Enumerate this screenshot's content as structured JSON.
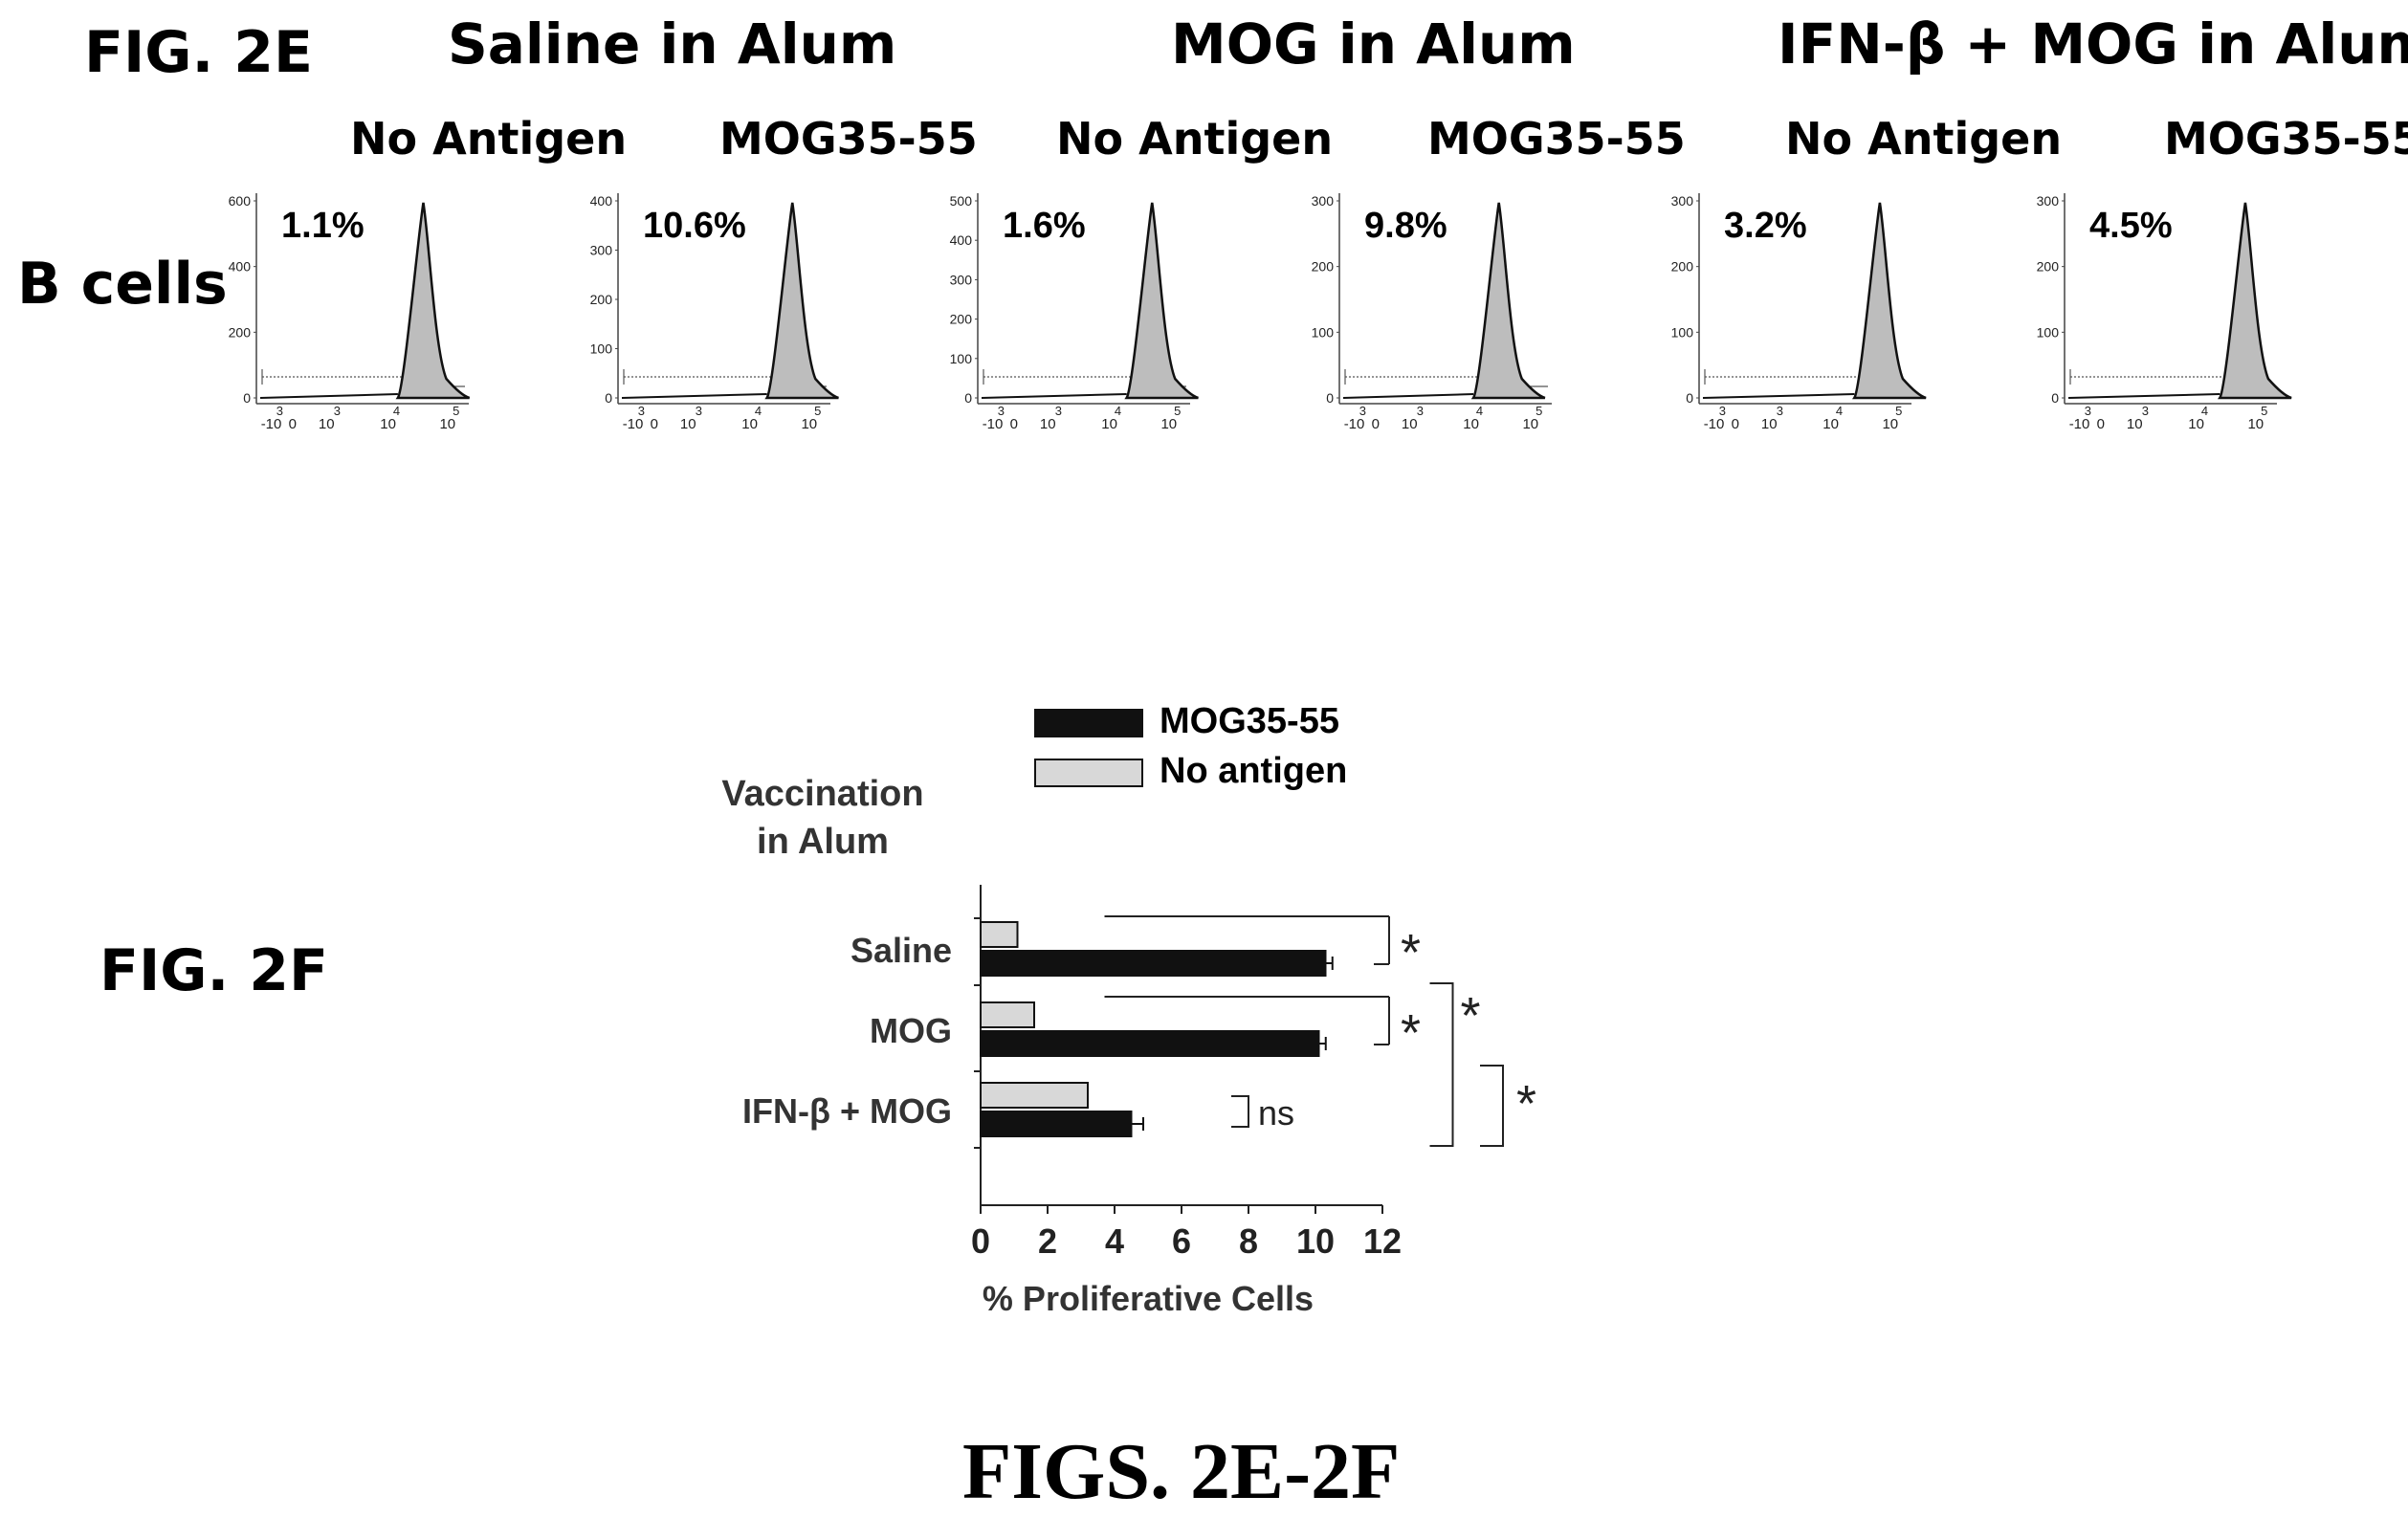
{
  "fig2e": {
    "label": "FIG. 2E",
    "row_label": "B cells",
    "groups": [
      {
        "title": "Saline in Alum"
      },
      {
        "title": "MOG in Alum"
      },
      {
        "title": "IFN-β + MOG in Alum"
      }
    ],
    "panels": [
      {
        "condition": "No Antigen",
        "percent": "1.1%",
        "y_ticks": [
          "600",
          "400",
          "200",
          "0"
        ],
        "x_ticks": [
          "-10",
          "0",
          "10",
          "10",
          "10"
        ],
        "x_exps": [
          "3",
          "3",
          "4",
          "5"
        ]
      },
      {
        "condition": "MOG35-55",
        "percent": "10.6%",
        "y_ticks": [
          "400",
          "300",
          "200",
          "100",
          "0"
        ],
        "x_ticks": [
          "-10",
          "0",
          "10",
          "10",
          "10"
        ],
        "x_exps": [
          "3",
          "3",
          "4",
          "5"
        ]
      },
      {
        "condition": "No Antigen",
        "percent": "1.6%",
        "y_ticks": [
          "500",
          "400",
          "300",
          "200",
          "100",
          "0"
        ],
        "x_ticks": [
          "-10",
          "0",
          "10",
          "10",
          "10"
        ],
        "x_exps": [
          "3",
          "3",
          "4",
          "5"
        ]
      },
      {
        "condition": "MOG35-55",
        "percent": "9.8%",
        "y_ticks": [
          "300",
          "200",
          "100",
          "0"
        ],
        "x_ticks": [
          "-10",
          "0",
          "10",
          "10",
          "10"
        ],
        "x_exps": [
          "3",
          "3",
          "4",
          "5"
        ]
      },
      {
        "condition": "No Antigen",
        "percent": "3.2%",
        "y_ticks": [
          "300",
          "200",
          "100",
          "0"
        ],
        "x_ticks": [
          "-10",
          "0",
          "10",
          "10",
          "10"
        ],
        "x_exps": [
          "3",
          "3",
          "4",
          "5"
        ]
      },
      {
        "condition": "MOG35-55",
        "percent": "4.5%",
        "y_ticks": [
          "300",
          "200",
          "100",
          "0"
        ],
        "x_ticks": [
          "-10",
          "0",
          "10",
          "10",
          "10"
        ],
        "x_exps": [
          "3",
          "3",
          "4",
          "5"
        ]
      }
    ]
  },
  "fig2f": {
    "label": "FIG. 2F"
  },
  "caption": "FIGS. 2E-2F",
  "chart_data": {
    "type": "bar",
    "orientation": "horizontal",
    "title": "Vaccination in Alum",
    "xlabel": "% Proliferative Cells",
    "ylabel": "",
    "xlim": [
      0,
      12
    ],
    "x_ticks": [
      "0",
      "2",
      "4",
      "6",
      "8",
      "10",
      "12"
    ],
    "categories": [
      "Saline",
      "MOG",
      "IFN-β + MOG"
    ],
    "series": [
      {
        "name": "No antigen",
        "values": [
          1.1,
          1.6,
          3.2
        ],
        "errors": [
          0,
          0,
          0
        ],
        "color": "#d8d8d8"
      },
      {
        "name": "MOG35-55",
        "values": [
          10.3,
          10.1,
          4.5
        ],
        "errors": [
          0.15,
          0.15,
          0.3
        ],
        "color": "#111111"
      }
    ],
    "legend_order": [
      "MOG35-55",
      "No antigen"
    ],
    "legend_position": "top",
    "significance": {
      "star": "*",
      "ns": "ns"
    }
  }
}
